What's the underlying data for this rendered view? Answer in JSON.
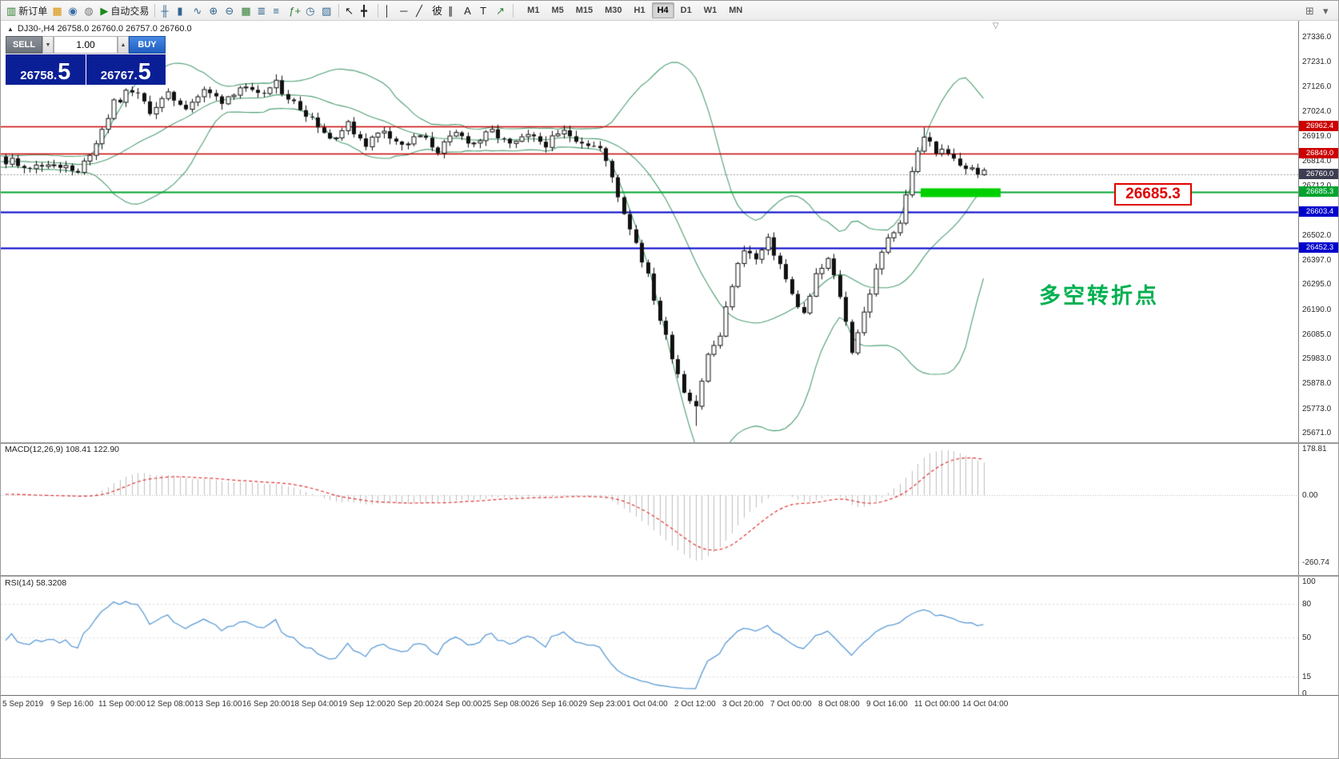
{
  "toolbar": {
    "items": [
      {
        "name": "new-order-button",
        "glyph": "▥",
        "glyph_color": "#2f7d32",
        "label": "新订单"
      },
      {
        "name": "charts-icon",
        "glyph": "▦",
        "glyph_color": "#d89000"
      },
      {
        "name": "profile-icon",
        "glyph": "◉",
        "glyph_color": "#3a6ea5"
      },
      {
        "name": "sound-alert-icon",
        "glyph": "◍",
        "glyph_color": "#777777"
      },
      {
        "name": "autotrade-button",
        "glyph": "▶",
        "glyph_color": "#1d8a1d",
        "label": "自动交易"
      },
      {
        "name": "toolbar-separator",
        "sep": true
      },
      {
        "name": "bar-chart-icon",
        "glyph": "╫",
        "glyph_color": "#33668f"
      },
      {
        "name": "candle-chart-icon",
        "glyph": "▮",
        "glyph_color": "#33668f"
      },
      {
        "name": "line-chart-icon",
        "glyph": "∿",
        "glyph_color": "#33668f"
      },
      {
        "name": "zoom-in-icon",
        "glyph": "⊕",
        "glyph_color": "#33668f"
      },
      {
        "name": "zoom-out-icon",
        "glyph": "⊖",
        "glyph_color": "#33668f"
      },
      {
        "name": "tile-windows-icon",
        "glyph": "▦",
        "glyph_color": "#2f7d32"
      },
      {
        "name": "arrange-windows-icon",
        "glyph": "≣",
        "glyph_color": "#33668f"
      },
      {
        "name": "cascade-windows-icon",
        "glyph": "≡",
        "glyph_color": "#33668f"
      },
      {
        "name": "indicators-icon",
        "glyph": "ƒ+",
        "glyph_color": "#2f7d32"
      },
      {
        "name": "periods-icon",
        "glyph": "◷",
        "glyph_color": "#33668f"
      },
      {
        "name": "templates-icon",
        "glyph": "▨",
        "glyph_color": "#33668f"
      },
      {
        "name": "toolbar-separator",
        "sep": true
      },
      {
        "name": "cursor-icon",
        "glyph": "↖",
        "glyph_color": "#222222"
      },
      {
        "name": "crosshair-icon",
        "glyph": "╋",
        "glyph_color": "#222222"
      },
      {
        "name": "toolbar-separator",
        "sep": true
      },
      {
        "name": "vertical-line-icon",
        "glyph": "│",
        "glyph_color": "#222222"
      },
      {
        "name": "horizontal-line-icon",
        "glyph": "─",
        "glyph_color": "#222222"
      },
      {
        "name": "trendline-icon",
        "glyph": "╱",
        "glyph_color": "#222222"
      },
      {
        "name": "fibonacci-icon",
        "glyph": "彼",
        "glyph_color": "#222222"
      },
      {
        "name": "channel-icon",
        "glyph": "∥",
        "glyph_color": "#222222"
      },
      {
        "name": "text-icon",
        "glyph": "A",
        "glyph_color": "#222222"
      },
      {
        "name": "text-label-icon",
        "glyph": "T",
        "glyph_color": "#222222"
      },
      {
        "name": "arrow-objects-icon",
        "glyph": "↗",
        "glyph_color": "#2f7d32"
      },
      {
        "name": "toolbar-separator",
        "sep": true
      }
    ],
    "timeframes": [
      "M1",
      "M5",
      "M15",
      "M30",
      "H1",
      "H4",
      "D1",
      "W1",
      "MN"
    ],
    "active_timeframe": "H4",
    "right_icons": [
      {
        "name": "toolbar-customize-icon",
        "glyph": "⊞"
      },
      {
        "name": "toolbar-more-icon",
        "glyph": "▾"
      }
    ]
  },
  "chart": {
    "symbol_info": {
      "icon": "▲",
      "text": "DJ30-,H4  26758.0 26760.0 26757.0 26760.0"
    },
    "one_click": {
      "sell_label": "SELL",
      "buy_label": "BUY",
      "lot_value": "1.00",
      "lot_down_glyph": "▼",
      "lot_up_glyph": "▲",
      "sell_price": {
        "main": "26758.",
        "big": "5"
      },
      "buy_price": {
        "main": "26767.",
        "big": "5"
      }
    },
    "annotation": {
      "label": "26685.3",
      "note": "多空转折点"
    },
    "shift_marker_glyph": "▽",
    "levels": [
      {
        "price": 26962.4,
        "label": "26962.4",
        "color": "#cc0000",
        "tag": "#cc0000",
        "width": 1.6
      },
      {
        "price": 26849.0,
        "label": "26849.0",
        "color": "#cc0000",
        "tag": "#cc0000",
        "width": 1.6
      },
      {
        "price": 26760.0,
        "label": "26760.0",
        "color": "#999999",
        "tag": "#3d3d52",
        "style": "dash"
      },
      {
        "price": 26685.3,
        "label": "26685.3",
        "color": "#00a32e",
        "tag": "#00a32e",
        "width": 2
      },
      {
        "price": 26603.4,
        "label": "26603.4",
        "color": "#0000cc",
        "tag": "#0000cc",
        "width": 2
      },
      {
        "price": 26452.3,
        "label": "26452.3",
        "color": "#0000cc",
        "tag": "#0000cc",
        "width": 2
      }
    ],
    "price_axis": [
      "27336.0",
      "27231.0",
      "27126.0",
      "27024.0",
      "26919.0",
      "26814.0",
      "26712.0",
      "26502.0",
      "26397.0",
      "26295.0",
      "26190.0",
      "26085.0",
      "25983.0",
      "25878.0",
      "25773.0",
      "25671.0"
    ],
    "time_axis": [
      "5 Sep 2019",
      "9 Sep 16:00",
      "11 Sep 00:00",
      "12 Sep 08:00",
      "13 Sep 16:00",
      "16 Sep 20:00",
      "18 Sep 04:00",
      "19 Sep 12:00",
      "20 Sep 20:00",
      "24 Sep 00:00",
      "25 Sep 08:00",
      "26 Sep 16:00",
      "29 Sep 23:00",
      "1 Oct 04:00",
      "2 Oct 12:00",
      "3 Oct 20:00",
      "7 Oct 00:00",
      "8 Oct 08:00",
      "9 Oct 16:00",
      "11 Oct 00:00",
      "14 Oct 04:00"
    ]
  },
  "macd": {
    "label": "MACD(12,26,9) 108.41 122.90",
    "axis": [
      "178.81",
      "0.00",
      "-260.74"
    ]
  },
  "rsi": {
    "label": "RSI(14) 58.3208",
    "axis_values": [
      100,
      80,
      50,
      15,
      0
    ]
  },
  "colors": {
    "band": "#4d9e72",
    "bull": "#ffffff",
    "bear": "#111111",
    "wick": "#111111",
    "highlight_green": "#00d000",
    "macd_hist": "#bfbfbf",
    "macd_signal": "#e03434",
    "rsi_line": "#5b9bd5"
  }
}
